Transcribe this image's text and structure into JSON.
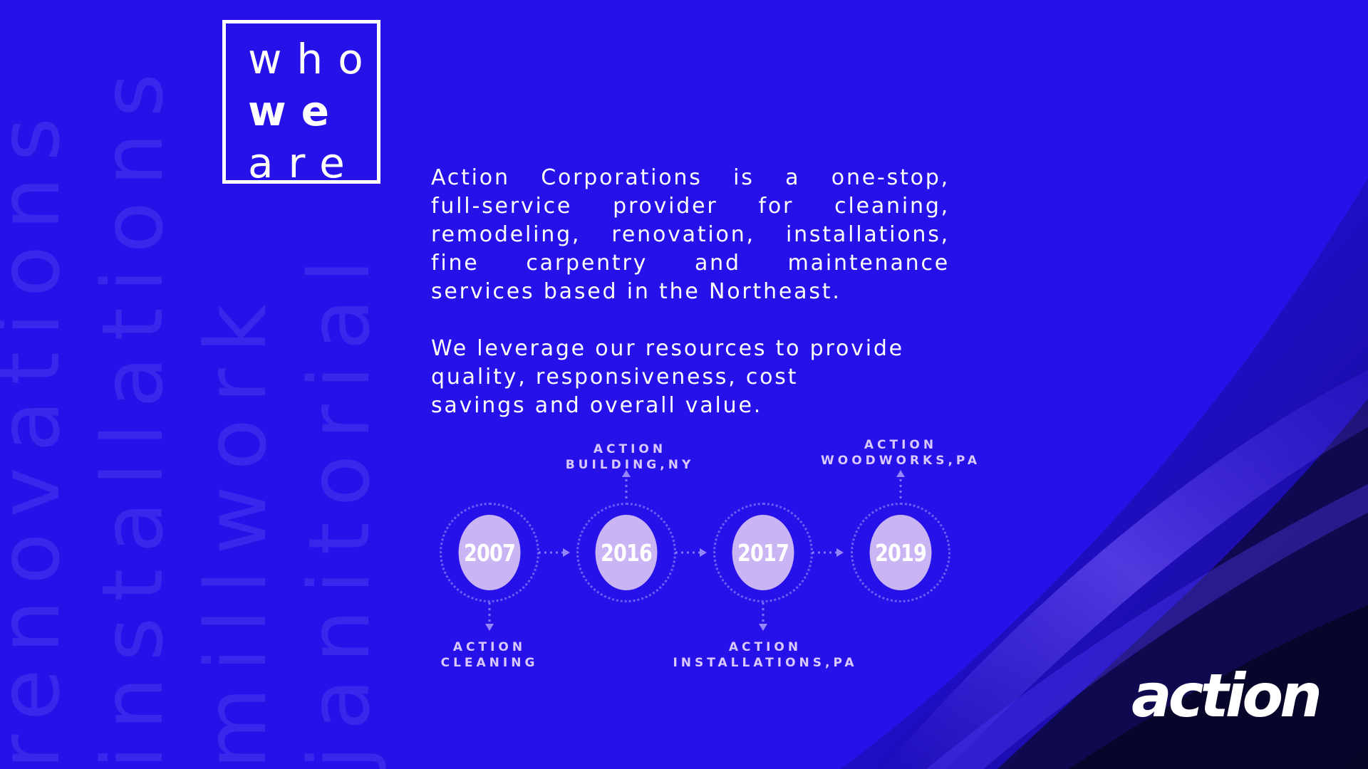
{
  "watermark_words": [
    "renovations",
    "installations",
    "millwork",
    "janitorial"
  ],
  "heading": {
    "line1": "who",
    "line2": "we",
    "line3": "are"
  },
  "intro_paragraph": {
    "line1": "Action Corporations is a one-stop,",
    "line2": "full-service provider for cleaning,",
    "line3": "remodeling, renovation, installations,",
    "line4": "fine carpentry and maintenance",
    "line5": "services based in the Northeast."
  },
  "value_paragraph": {
    "line1": "We leverage our resources to provide",
    "line2": "quality, responsiveness, cost",
    "line3": "savings and overall value."
  },
  "timeline": [
    {
      "year": "2007",
      "label_line1": "ACTION",
      "label_line2": "CLEANING"
    },
    {
      "year": "2016",
      "label_line1": "ACTION",
      "label_line2": "BUILDING,NY"
    },
    {
      "year": "2017",
      "label_line1": "ACTION",
      "label_line2": "INSTALLATIONS,PA"
    },
    {
      "year": "2019",
      "label_line1": "ACTION",
      "label_line2": "WOODWORKS,PA"
    }
  ],
  "logo": {
    "text": "action"
  },
  "colors": {
    "background": "#2612e8",
    "circle_fill": "#c9b4f4",
    "label_text": "#d9c9ff",
    "corner_dark": "#0c0838"
  }
}
